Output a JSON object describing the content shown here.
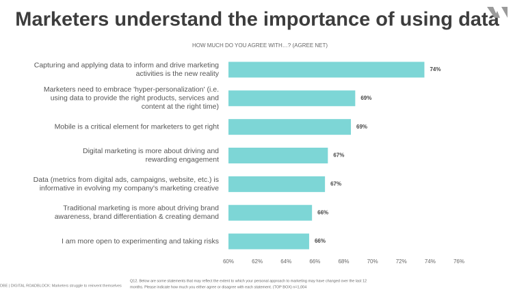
{
  "chart_data": {
    "type": "bar",
    "orientation": "horizontal",
    "title": "Marketers understand the importance of using data",
    "subtitle": "HOW MUCH DO YOU AGREE WITH…? (AGREE NET)",
    "categories": [
      [
        "Capturing and applying data to inform and drive marketing",
        "activities is the new reality"
      ],
      [
        "Marketers need to embrace 'hyper-personalization' (i.e.",
        "using data to provide the right products, services and",
        "content at the right time)"
      ],
      [
        "Mobile is a critical element for marketers to get right"
      ],
      [
        "Digital marketing is more about driving and",
        "rewarding engagement"
      ],
      [
        "Data (metrics from digital ads, campaigns, website, etc.) is",
        "informative in evolving my company's marketing creative"
      ],
      [
        "Traditional marketing is more about driving brand",
        "awareness, brand differentiation & creating demand"
      ],
      [
        "I am more open to experimenting and taking risks"
      ]
    ],
    "values": [
      73.6,
      68.8,
      68.5,
      66.9,
      66.7,
      65.8,
      65.6
    ],
    "value_labels": [
      "74%",
      "69%",
      "69%",
      "67%",
      "67%",
      "66%",
      "66%"
    ],
    "color": "#7dd6d6",
    "xlim": [
      60,
      76
    ],
    "xticks": [
      {
        "value": 60,
        "label": "60%"
      },
      {
        "value": 62,
        "label": "62%"
      },
      {
        "value": 64,
        "label": "64%"
      },
      {
        "value": 66,
        "label": "66%"
      },
      {
        "value": 68,
        "label": "68%"
      },
      {
        "value": 70,
        "label": "70%"
      },
      {
        "value": 72,
        "label": "72%"
      },
      {
        "value": 74,
        "label": "74%"
      },
      {
        "value": 76,
        "label": "76%"
      }
    ],
    "grid": false,
    "footer_left": "DBE | DIGITAL ROADBLOCK: Marketers struggle to reinvent themselves",
    "footnote": [
      "Q12. Below are some statements that may reflect the extent to which your personal approach to marketing may have changed over the last 12",
      "months. Please indicate how much you either agree or disagree with each statement. (TOP BOX) n=1,004"
    ]
  }
}
